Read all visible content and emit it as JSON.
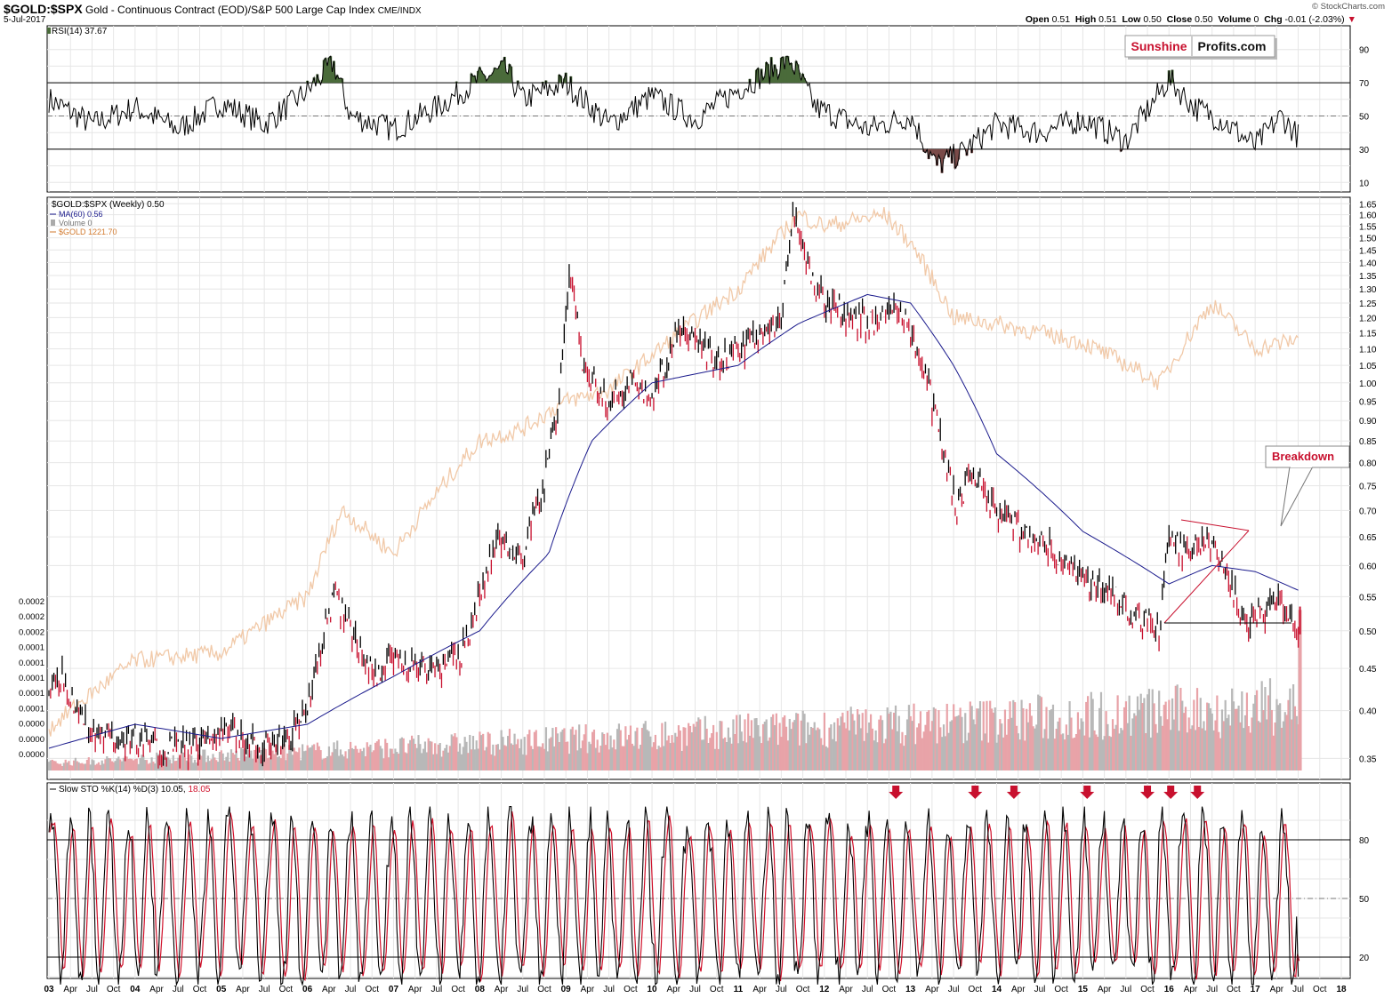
{
  "header": {
    "symbol": "$GOLD:$SPX",
    "description": "Gold - Continuous Contract (EOD)/S&P 500 Large Cap Index",
    "exchange": "CME/INDX",
    "date": "5-Jul-2017",
    "open_label": "Open",
    "open": "0.51",
    "high_label": "High",
    "high": "0.51",
    "low_label": "Low",
    "low": "0.50",
    "close_label": "Close",
    "close": "0.50",
    "volume_label": "Volume",
    "volume": "0",
    "chg_label": "Chg",
    "chg": "-0.01 (-2.03%)",
    "watermark": "© StockCharts.com"
  },
  "logo": {
    "part1": "Sunshine",
    "part2": "Profits.com"
  },
  "colors": {
    "ratio_line": "#000000",
    "ma": "#1a1a8c",
    "gold": "#f1c9a8",
    "down_bar": "#c8102e",
    "vol_up": "#b8b8b8",
    "vol_down": "#e8a3a8",
    "rsi_over": "#4a6b3a",
    "rsi_under": "#7a4a48",
    "sto_k": "#000000",
    "sto_d": "#d0102a",
    "annot": "#c8102e",
    "grid": "#e6e6e6"
  },
  "chart_data": [
    {
      "type": "line",
      "panel": "rsi",
      "legend": "RSI(14) 37.67",
      "ylim": [
        0,
        100
      ],
      "yticks": [
        10,
        30,
        50,
        70,
        90
      ],
      "levels": [
        30,
        50,
        70
      ],
      "x": [
        2003.0,
        2003.5,
        2004.0,
        2004.5,
        2005.0,
        2005.5,
        2006.0,
        2006.3,
        2006.5,
        2007.0,
        2007.5,
        2008.0,
        2008.3,
        2008.5,
        2009.0,
        2009.5,
        2010.0,
        2010.5,
        2011.0,
        2011.6,
        2011.9,
        2012.5,
        2013.0,
        2013.3,
        2013.6,
        2014.0,
        2014.5,
        2015.0,
        2015.5,
        2016.0,
        2016.3,
        2016.6,
        2017.0,
        2017.3,
        2017.5
      ],
      "values": [
        60,
        45,
        55,
        42,
        58,
        45,
        65,
        82,
        50,
        42,
        55,
        72,
        78,
        60,
        70,
        45,
        62,
        48,
        66,
        84,
        55,
        42,
        50,
        20,
        28,
        45,
        40,
        48,
        35,
        72,
        55,
        48,
        32,
        50,
        37.67
      ]
    },
    {
      "type": "line",
      "panel": "price",
      "legend_symbol": "$GOLD:$SPX (Weekly) 0.50",
      "legend_ma": "MA(60) 0.56",
      "legend_volume": "Volume 0",
      "legend_gold": "$GOLD 1221.70",
      "scale": "log",
      "ylim": [
        0.33,
        1.68
      ],
      "yticks": [
        0.35,
        0.4,
        0.45,
        0.5,
        0.55,
        0.6,
        0.65,
        0.7,
        0.75,
        0.8,
        0.85,
        0.9,
        0.95,
        1.0,
        1.05,
        1.1,
        1.15,
        1.2,
        1.25,
        1.3,
        1.35,
        1.4,
        1.45,
        1.5,
        1.55,
        1.6,
        1.65
      ],
      "volume_axis_ticks": [
        "0.0002",
        "0.0002",
        "0.0002",
        "0.0001",
        "0.0001",
        "0.0001",
        "0.0001",
        "0.0001",
        "0.0000",
        "0.0000",
        "0.0000"
      ],
      "series": [
        {
          "name": "$GOLD:$SPX",
          "x": [
            2003.0,
            2003.15,
            2003.5,
            2004.0,
            2004.3,
            2004.6,
            2005.0,
            2005.5,
            2005.8,
            2006.0,
            2006.3,
            2006.5,
            2006.8,
            2007.0,
            2007.5,
            2007.8,
            2008.0,
            2008.2,
            2008.5,
            2008.7,
            2008.9,
            2009.05,
            2009.2,
            2009.5,
            2009.8,
            2010.0,
            2010.3,
            2010.5,
            2010.8,
            2011.0,
            2011.3,
            2011.5,
            2011.65,
            2011.75,
            2011.9,
            2012.0,
            2012.3,
            2012.6,
            2012.9,
            2013.0,
            2013.2,
            2013.4,
            2013.55,
            2013.7,
            2014.0,
            2014.3,
            2014.6,
            2015.0,
            2015.3,
            2015.6,
            2015.9,
            2016.0,
            2016.2,
            2016.4,
            2016.6,
            2016.9,
            2017.0,
            2017.3,
            2017.5
          ],
          "values": [
            0.42,
            0.44,
            0.37,
            0.37,
            0.36,
            0.36,
            0.38,
            0.36,
            0.37,
            0.4,
            0.55,
            0.5,
            0.44,
            0.46,
            0.45,
            0.47,
            0.55,
            0.65,
            0.62,
            0.72,
            0.9,
            1.35,
            1.05,
            0.93,
            1.02,
            0.95,
            1.15,
            1.12,
            1.05,
            1.1,
            1.15,
            1.2,
            1.62,
            1.45,
            1.3,
            1.25,
            1.2,
            1.18,
            1.22,
            1.15,
            1.0,
            0.8,
            0.7,
            0.78,
            0.7,
            0.66,
            0.63,
            0.58,
            0.56,
            0.52,
            0.5,
            0.66,
            0.62,
            0.65,
            0.6,
            0.51,
            0.52,
            0.54,
            0.5
          ]
        },
        {
          "name": "MA(60)",
          "x": [
            2003.0,
            2004.0,
            2005.0,
            2006.0,
            2007.0,
            2008.0,
            2008.8,
            2009.3,
            2010.0,
            2011.0,
            2011.7,
            2012.5,
            2013.0,
            2013.5,
            2014.0,
            2015.0,
            2016.0,
            2016.5,
            2017.0,
            2017.5
          ],
          "values": [
            0.36,
            0.385,
            0.37,
            0.385,
            0.44,
            0.5,
            0.62,
            0.85,
            1.0,
            1.05,
            1.18,
            1.28,
            1.25,
            1.05,
            0.82,
            0.66,
            0.57,
            0.6,
            0.59,
            0.56
          ]
        },
        {
          "name": "$GOLD",
          "x": [
            2003.0,
            2004.0,
            2005.0,
            2006.0,
            2006.4,
            2007.0,
            2008.0,
            2008.5,
            2009.0,
            2009.5,
            2010.0,
            2011.0,
            2011.7,
            2012.0,
            2012.7,
            2013.0,
            2013.5,
            2014.0,
            2015.0,
            2015.9,
            2016.5,
            2017.0,
            2017.5
          ],
          "values": [
            0.38,
            0.46,
            0.47,
            0.55,
            0.7,
            0.62,
            0.85,
            0.88,
            0.95,
            0.98,
            1.08,
            1.3,
            1.6,
            1.55,
            1.6,
            1.48,
            1.2,
            1.18,
            1.12,
            1.0,
            1.25,
            1.1,
            1.13
          ]
        }
      ],
      "annotations": {
        "breakdown": "Breakdown"
      }
    },
    {
      "type": "line",
      "panel": "stochastic",
      "legend_label": "Slow STO %K(14) %D(3) 10.05,",
      "legend_d": "18.05",
      "ylim": [
        0,
        100
      ],
      "yticks": [
        20,
        50,
        80
      ],
      "levels": [
        20,
        50,
        80
      ]
    }
  ],
  "xaxis": {
    "labels": [
      "03",
      "Apr",
      "Jul",
      "Oct",
      "04",
      "Apr",
      "Jul",
      "Oct",
      "05",
      "Apr",
      "Jul",
      "Oct",
      "06",
      "Apr",
      "Jul",
      "Oct",
      "07",
      "Apr",
      "Jul",
      "Oct",
      "08",
      "Apr",
      "Jul",
      "Oct",
      "09",
      "Apr",
      "Jul",
      "Oct",
      "10",
      "Apr",
      "Jul",
      "Oct",
      "11",
      "Apr",
      "Jul",
      "Oct",
      "12",
      "Apr",
      "Jul",
      "Oct",
      "13",
      "Apr",
      "Jul",
      "Oct",
      "14",
      "Apr",
      "Jul",
      "Oct",
      "15",
      "Apr",
      "Jul",
      "Oct",
      "16",
      "Apr",
      "Jul",
      "Oct",
      "17",
      "Apr",
      "Jul",
      "Oct",
      "18"
    ]
  }
}
